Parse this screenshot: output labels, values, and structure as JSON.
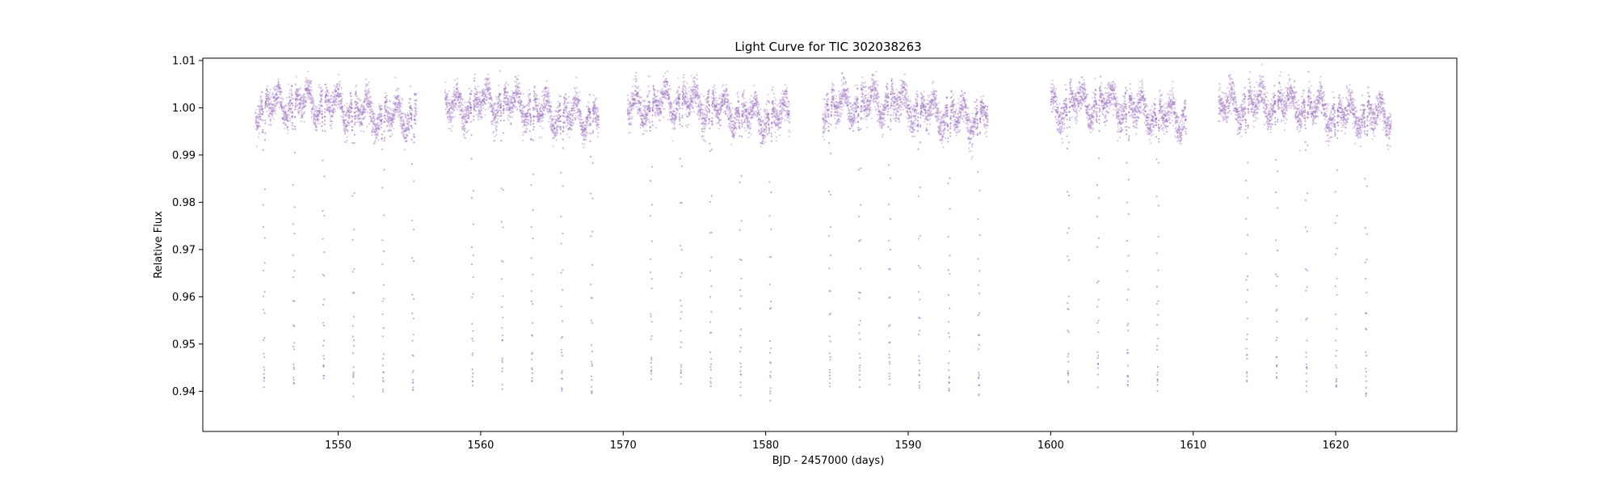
{
  "chart_data": {
    "type": "scatter",
    "title": "Light Curve for TIC 302038263",
    "xlabel": "BJD - 2457000 (days)",
    "ylabel": "Relative Flux",
    "xlim": [
      1540.5,
      1628.5
    ],
    "ylim": [
      0.9315,
      1.0105
    ],
    "x_ticks": [
      1550,
      1560,
      1570,
      1580,
      1590,
      1600,
      1610,
      1620
    ],
    "x_tick_labels": [
      "1550",
      "1560",
      "1570",
      "1580",
      "1590",
      "1600",
      "1610",
      "1620"
    ],
    "y_ticks": [
      0.94,
      0.95,
      0.96,
      0.97,
      0.98,
      0.99,
      1.0,
      1.01
    ],
    "y_tick_labels": [
      "0.94",
      "0.95",
      "0.96",
      "0.97",
      "0.98",
      "0.99",
      "1.00",
      "1.01"
    ],
    "grid": false,
    "legend": "none",
    "marker_color": "#9467bd",
    "segments": [
      [
        1544.2,
        1555.5
      ],
      [
        1557.5,
        1568.3
      ],
      [
        1570.3,
        1581.7
      ],
      [
        1584.0,
        1595.6
      ],
      [
        1600.0,
        1609.5
      ],
      [
        1611.8,
        1623.9
      ]
    ],
    "baseline_flux": 1.0,
    "continuum_scatter": 0.0035,
    "eclipse_period_days": 2.09,
    "first_eclipse_time": 1544.8,
    "eclipse_min_flux": 0.939,
    "eclipse_width_days": 0.14
  }
}
